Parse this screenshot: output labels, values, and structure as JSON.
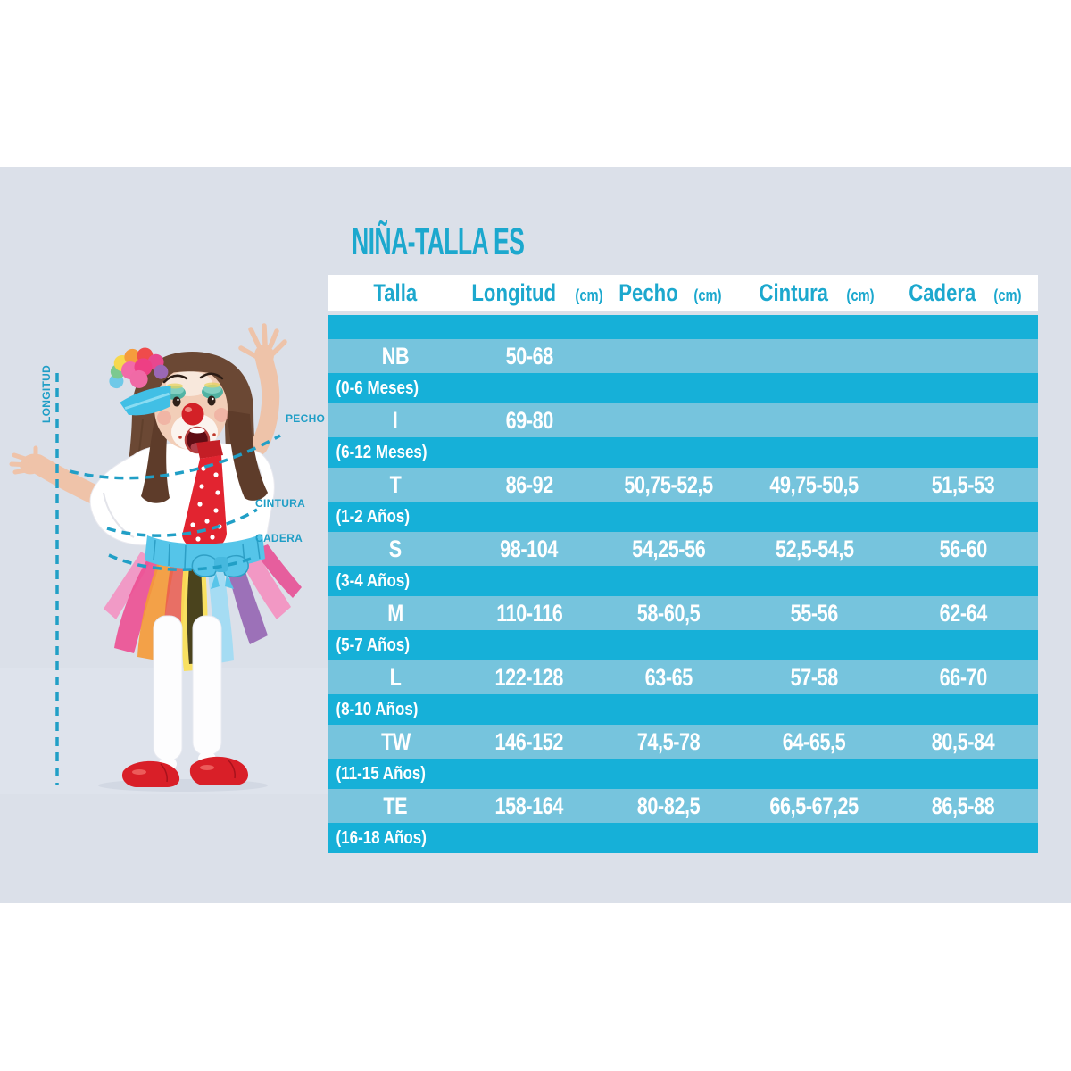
{
  "title": "NIÑA-TALLA ES",
  "colors": {
    "accent": "#1ca8ce",
    "table_dark": "#16b0d8",
    "table_light": "#76c4dd",
    "panel_bg": "#dbe0e9",
    "header_bg": "#ffffff",
    "row_text": "#ffffff"
  },
  "figure": {
    "labels": {
      "longitud": "LONGITUD",
      "pecho": "PECHO",
      "cintura": "CINTURA",
      "cadera": "CADERA"
    }
  },
  "table": {
    "headers": [
      {
        "key": "talla",
        "label": "Talla",
        "unit": ""
      },
      {
        "key": "longitud",
        "label": "Longitud",
        "unit": "(cm)"
      },
      {
        "key": "pecho",
        "label": "Pecho",
        "unit": "(cm)"
      },
      {
        "key": "cintura",
        "label": "Cintura",
        "unit": "(cm)"
      },
      {
        "key": "cadera",
        "label": "Cadera",
        "unit": "(cm)"
      }
    ],
    "rows": [
      {
        "size": "NB",
        "age": "(0-6 Meses)",
        "longitud": "50-68",
        "pecho": "",
        "cintura": "",
        "cadera": ""
      },
      {
        "size": "I",
        "age": "(6-12 Meses)",
        "longitud": "69-80",
        "pecho": "",
        "cintura": "",
        "cadera": ""
      },
      {
        "size": "T",
        "age": "(1-2 Años)",
        "longitud": "86-92",
        "pecho": "50,75-52,5",
        "cintura": "49,75-50,5",
        "cadera": "51,5-53"
      },
      {
        "size": "S",
        "age": "(3-4 Años)",
        "longitud": "98-104",
        "pecho": "54,25-56",
        "cintura": "52,5-54,5",
        "cadera": "56-60"
      },
      {
        "size": "M",
        "age": "(5-7 Años)",
        "longitud": "110-116",
        "pecho": "58-60,5",
        "cintura": "55-56",
        "cadera": "62-64"
      },
      {
        "size": "L",
        "age": "(8-10 Años)",
        "longitud": "122-128",
        "pecho": "63-65",
        "cintura": "57-58",
        "cadera": "66-70"
      },
      {
        "size": "TW",
        "age": "(11-15 Años)",
        "longitud": "146-152",
        "pecho": "74,5-78",
        "cintura": "64-65,5",
        "cadera": "80,5-84"
      },
      {
        "size": "TE",
        "age": "(16-18 Años)",
        "longitud": "158-164",
        "pecho": "80-82,5",
        "cintura": "66,5-67,25",
        "cadera": "86,5-88"
      }
    ]
  }
}
